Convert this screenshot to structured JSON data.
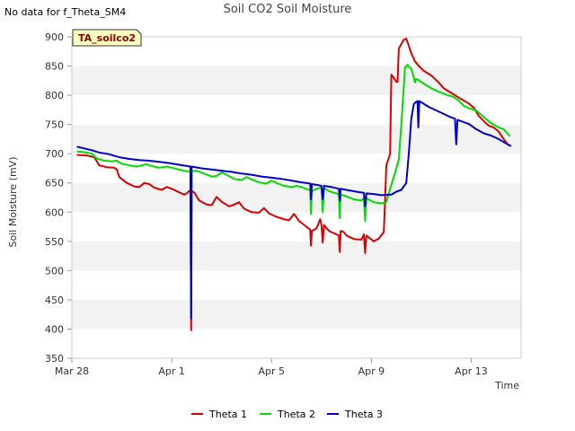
{
  "header": {
    "no_data_text": "No data for f_Theta_SM4",
    "badge_text": "TA_soilco2"
  },
  "chart_data": {
    "type": "line",
    "title": "Soil CO2 Soil Moisture",
    "xlabel": "Time",
    "ylabel": "Soil Moisture (mV)",
    "ylim": [
      350,
      900
    ],
    "yticks": [
      350,
      400,
      450,
      500,
      550,
      600,
      650,
      700,
      750,
      800,
      850,
      900
    ],
    "x_range_days": [
      0,
      18
    ],
    "xticks": [
      {
        "day": 0,
        "label": "Mar 28"
      },
      {
        "day": 4,
        "label": "Apr 1"
      },
      {
        "day": 8,
        "label": "Apr 5"
      },
      {
        "day": 12,
        "label": "Apr 9"
      },
      {
        "day": 16,
        "label": "Apr 13"
      }
    ],
    "grid": "horizontal bands",
    "legend_position": "bottom",
    "series": [
      {
        "name": "Theta 1",
        "color": "#dd0000",
        "points": [
          [
            0.2,
            698
          ],
          [
            0.6,
            697
          ],
          [
            0.9,
            694
          ],
          [
            1.1,
            680
          ],
          [
            1.4,
            677
          ],
          [
            1.7,
            676
          ],
          [
            1.8,
            673
          ],
          [
            1.9,
            660
          ],
          [
            2.2,
            650
          ],
          [
            2.5,
            644
          ],
          [
            2.7,
            643
          ],
          [
            2.9,
            650
          ],
          [
            3.1,
            648
          ],
          [
            3.3,
            642
          ],
          [
            3.6,
            638
          ],
          [
            3.8,
            643
          ],
          [
            4.0,
            640
          ],
          [
            4.3,
            634
          ],
          [
            4.5,
            630
          ],
          [
            4.6,
            632
          ],
          [
            4.75,
            638
          ],
          [
            4.78,
            398
          ],
          [
            4.8,
            636
          ],
          [
            4.9,
            634
          ],
          [
            5.1,
            620
          ],
          [
            5.4,
            613
          ],
          [
            5.6,
            612
          ],
          [
            5.8,
            626
          ],
          [
            6.0,
            618
          ],
          [
            6.3,
            610
          ],
          [
            6.5,
            613
          ],
          [
            6.7,
            617
          ],
          [
            6.9,
            606
          ],
          [
            7.2,
            600
          ],
          [
            7.5,
            599
          ],
          [
            7.7,
            607
          ],
          [
            7.9,
            598
          ],
          [
            8.2,
            592
          ],
          [
            8.5,
            588
          ],
          [
            8.7,
            586
          ],
          [
            8.9,
            597
          ],
          [
            9.1,
            585
          ],
          [
            9.4,
            575
          ],
          [
            9.55,
            570
          ],
          [
            9.58,
            543
          ],
          [
            9.62,
            568
          ],
          [
            9.8,
            572
          ],
          [
            9.95,
            588
          ],
          [
            10.0,
            578
          ],
          [
            10.05,
            548
          ],
          [
            10.1,
            578
          ],
          [
            10.3,
            568
          ],
          [
            10.6,
            562
          ],
          [
            10.7,
            560
          ],
          [
            10.73,
            532
          ],
          [
            10.77,
            568
          ],
          [
            10.9,
            566
          ],
          [
            11.0,
            560
          ],
          [
            11.3,
            554
          ],
          [
            11.6,
            553
          ],
          [
            11.7,
            562
          ],
          [
            11.75,
            530
          ],
          [
            11.8,
            560
          ],
          [
            12.1,
            550
          ],
          [
            12.3,
            555
          ],
          [
            12.5,
            566
          ],
          [
            12.55,
            620
          ],
          [
            12.6,
            680
          ],
          [
            12.75,
            700
          ],
          [
            12.8,
            835
          ],
          [
            12.9,
            830
          ],
          [
            13.0,
            823
          ],
          [
            13.05,
            823
          ],
          [
            13.1,
            880
          ],
          [
            13.3,
            895
          ],
          [
            13.4,
            897
          ],
          [
            13.6,
            872
          ],
          [
            13.75,
            858
          ],
          [
            13.9,
            850
          ],
          [
            14.1,
            842
          ],
          [
            14.4,
            834
          ],
          [
            14.7,
            822
          ],
          [
            14.9,
            812
          ],
          [
            15.2,
            804
          ],
          [
            15.5,
            796
          ],
          [
            15.7,
            791
          ],
          [
            15.9,
            786
          ],
          [
            16.1,
            779
          ],
          [
            16.3,
            765
          ],
          [
            16.5,
            756
          ],
          [
            16.7,
            748
          ],
          [
            16.9,
            745
          ],
          [
            17.1,
            738
          ],
          [
            17.3,
            725
          ],
          [
            17.5,
            714
          ]
        ]
      },
      {
        "name": "Theta 2",
        "color": "#00dd00",
        "points": [
          [
            0.2,
            704
          ],
          [
            0.6,
            702
          ],
          [
            0.8,
            700
          ],
          [
            1.0,
            692
          ],
          [
            1.3,
            688
          ],
          [
            1.6,
            687
          ],
          [
            1.8,
            688
          ],
          [
            2.0,
            683
          ],
          [
            2.3,
            680
          ],
          [
            2.6,
            678
          ],
          [
            2.8,
            680
          ],
          [
            3.0,
            682
          ],
          [
            3.2,
            679
          ],
          [
            3.5,
            676
          ],
          [
            3.8,
            678
          ],
          [
            4.0,
            676
          ],
          [
            4.3,
            673
          ],
          [
            4.6,
            670
          ],
          [
            4.75,
            670
          ],
          [
            4.78,
            420
          ],
          [
            4.8,
            670
          ],
          [
            5.0,
            671
          ],
          [
            5.3,
            666
          ],
          [
            5.6,
            661
          ],
          [
            5.8,
            662
          ],
          [
            6.0,
            668
          ],
          [
            6.2,
            664
          ],
          [
            6.5,
            657
          ],
          [
            6.8,
            655
          ],
          [
            7.0,
            660
          ],
          [
            7.2,
            656
          ],
          [
            7.5,
            651
          ],
          [
            7.8,
            649
          ],
          [
            8.0,
            654
          ],
          [
            8.2,
            650
          ],
          [
            8.5,
            645
          ],
          [
            8.8,
            643
          ],
          [
            9.0,
            645
          ],
          [
            9.2,
            643
          ],
          [
            9.5,
            638
          ],
          [
            9.55,
            638
          ],
          [
            9.58,
            597
          ],
          [
            9.62,
            636
          ],
          [
            9.8,
            640
          ],
          [
            10.0,
            642
          ],
          [
            10.05,
            600
          ],
          [
            10.1,
            641
          ],
          [
            10.3,
            636
          ],
          [
            10.6,
            632
          ],
          [
            10.7,
            631
          ],
          [
            10.73,
            590
          ],
          [
            10.77,
            630
          ],
          [
            11.0,
            627
          ],
          [
            11.3,
            622
          ],
          [
            11.6,
            620
          ],
          [
            11.7,
            624
          ],
          [
            11.75,
            585
          ],
          [
            11.8,
            624
          ],
          [
            12.1,
            617
          ],
          [
            12.4,
            615
          ],
          [
            12.6,
            617
          ],
          [
            12.75,
            640
          ],
          [
            12.9,
            660
          ],
          [
            13.1,
            690
          ],
          [
            13.2,
            750
          ],
          [
            13.35,
            848
          ],
          [
            13.45,
            852
          ],
          [
            13.6,
            845
          ],
          [
            13.7,
            830
          ],
          [
            13.75,
            822
          ],
          [
            13.78,
            828
          ],
          [
            13.9,
            826
          ],
          [
            14.1,
            820
          ],
          [
            14.4,
            812
          ],
          [
            14.7,
            806
          ],
          [
            15.0,
            801
          ],
          [
            15.3,
            797
          ],
          [
            15.5,
            791
          ],
          [
            15.7,
            782
          ],
          [
            15.9,
            778
          ],
          [
            16.2,
            774
          ],
          [
            16.5,
            763
          ],
          [
            16.8,
            752
          ],
          [
            17.1,
            745
          ],
          [
            17.3,
            742
          ],
          [
            17.55,
            730
          ]
        ]
      },
      {
        "name": "Theta 3",
        "color": "#0000cc",
        "points": [
          [
            0.2,
            712
          ],
          [
            0.5,
            709
          ],
          [
            0.8,
            706
          ],
          [
            1.1,
            702
          ],
          [
            1.5,
            699
          ],
          [
            1.9,
            694
          ],
          [
            2.3,
            691
          ],
          [
            2.7,
            689
          ],
          [
            3.1,
            688
          ],
          [
            3.5,
            686
          ],
          [
            3.9,
            684
          ],
          [
            4.3,
            681
          ],
          [
            4.75,
            678
          ],
          [
            4.78,
            418
          ],
          [
            4.8,
            678
          ],
          [
            5.2,
            675
          ],
          [
            5.6,
            673
          ],
          [
            6.0,
            671
          ],
          [
            6.4,
            669
          ],
          [
            6.8,
            666
          ],
          [
            7.2,
            664
          ],
          [
            7.6,
            661
          ],
          [
            8.0,
            659
          ],
          [
            8.4,
            657
          ],
          [
            8.8,
            654
          ],
          [
            9.2,
            651
          ],
          [
            9.55,
            649
          ],
          [
            9.58,
            622
          ],
          [
            9.62,
            648
          ],
          [
            9.9,
            646
          ],
          [
            10.0,
            645
          ],
          [
            10.05,
            622
          ],
          [
            10.1,
            645
          ],
          [
            10.4,
            643
          ],
          [
            10.7,
            640
          ],
          [
            10.73,
            620
          ],
          [
            10.77,
            640
          ],
          [
            11.0,
            638
          ],
          [
            11.4,
            635
          ],
          [
            11.7,
            633
          ],
          [
            11.75,
            610
          ],
          [
            11.8,
            632
          ],
          [
            12.1,
            631
          ],
          [
            12.4,
            629
          ],
          [
            12.8,
            630
          ],
          [
            13.0,
            635
          ],
          [
            13.2,
            638
          ],
          [
            13.4,
            650
          ],
          [
            13.5,
            700
          ],
          [
            13.6,
            760
          ],
          [
            13.7,
            785
          ],
          [
            13.8,
            789
          ],
          [
            13.85,
            790
          ],
          [
            13.88,
            745
          ],
          [
            13.92,
            790
          ],
          [
            14.0,
            788
          ],
          [
            14.3,
            780
          ],
          [
            14.6,
            774
          ],
          [
            14.9,
            768
          ],
          [
            15.2,
            762
          ],
          [
            15.35,
            760
          ],
          [
            15.4,
            716
          ],
          [
            15.45,
            758
          ],
          [
            15.7,
            754
          ],
          [
            15.9,
            751
          ],
          [
            16.2,
            742
          ],
          [
            16.5,
            735
          ],
          [
            16.8,
            731
          ],
          [
            17.1,
            725
          ],
          [
            17.3,
            720
          ],
          [
            17.6,
            713
          ]
        ]
      }
    ]
  }
}
